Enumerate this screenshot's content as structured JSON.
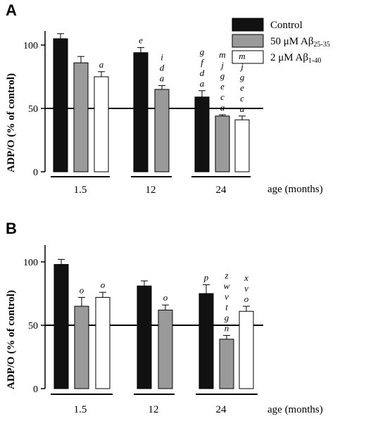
{
  "legend": {
    "items": [
      {
        "pre": "Control",
        "sub": "",
        "fill": "#111111"
      },
      {
        "pre": "50 μM Aβ",
        "sub": "25-35",
        "fill": "#9a9a9a"
      },
      {
        "pre": "2 μM Aβ",
        "sub": "1-40",
        "fill": "#ffffff"
      }
    ]
  },
  "colors": {
    "control": "#111111",
    "ab2535": "#9a9a9a",
    "ab140": "#ffffff"
  },
  "chart_data": [
    {
      "panel": "A",
      "type": "bar",
      "ylabel": "ADP/O (% of control)",
      "xlabel": "age (months)",
      "ylim": [
        0,
        110
      ],
      "yticks": [
        0,
        50,
        100
      ],
      "reference_line": 50,
      "categories": [
        "1.5",
        "12",
        "24"
      ],
      "series": [
        {
          "name": "Control",
          "values": [
            105,
            94,
            59
          ],
          "errors": [
            4,
            4,
            5
          ]
        },
        {
          "name": "50 μM Aβ25-35",
          "values": [
            86,
            65,
            44
          ],
          "errors": [
            5,
            3,
            1
          ]
        },
        {
          "name": "2 μM Aβ1-40",
          "values": [
            75,
            null,
            41
          ],
          "errors": [
            4,
            null,
            3
          ]
        }
      ],
      "annotations": [
        [
          "",
          "",
          "a"
        ],
        [
          "e",
          "i d a",
          ""
        ],
        [
          "g f d a",
          "m j g e c a",
          "m j g e c a"
        ]
      ]
    },
    {
      "panel": "B",
      "type": "bar",
      "ylabel": "ADP/O (% of control)",
      "xlabel": "age (months)",
      "ylim": [
        0,
        110
      ],
      "yticks": [
        0,
        50,
        100
      ],
      "reference_line": 50,
      "categories": [
        "1.5",
        "12",
        "24"
      ],
      "series": [
        {
          "name": "Control",
          "values": [
            98,
            81,
            75
          ],
          "errors": [
            4,
            4,
            7
          ]
        },
        {
          "name": "50 μM Aβ25-35",
          "values": [
            65,
            62,
            39
          ],
          "errors": [
            7,
            4,
            3
          ]
        },
        {
          "name": "2 μM Aβ1-40",
          "values": [
            72,
            null,
            61
          ],
          "errors": [
            4,
            null,
            4
          ]
        }
      ],
      "annotations": [
        [
          "",
          "o",
          "o"
        ],
        [
          "",
          "o",
          ""
        ],
        [
          "p",
          "z w v t g n",
          "x v o"
        ]
      ]
    }
  ]
}
